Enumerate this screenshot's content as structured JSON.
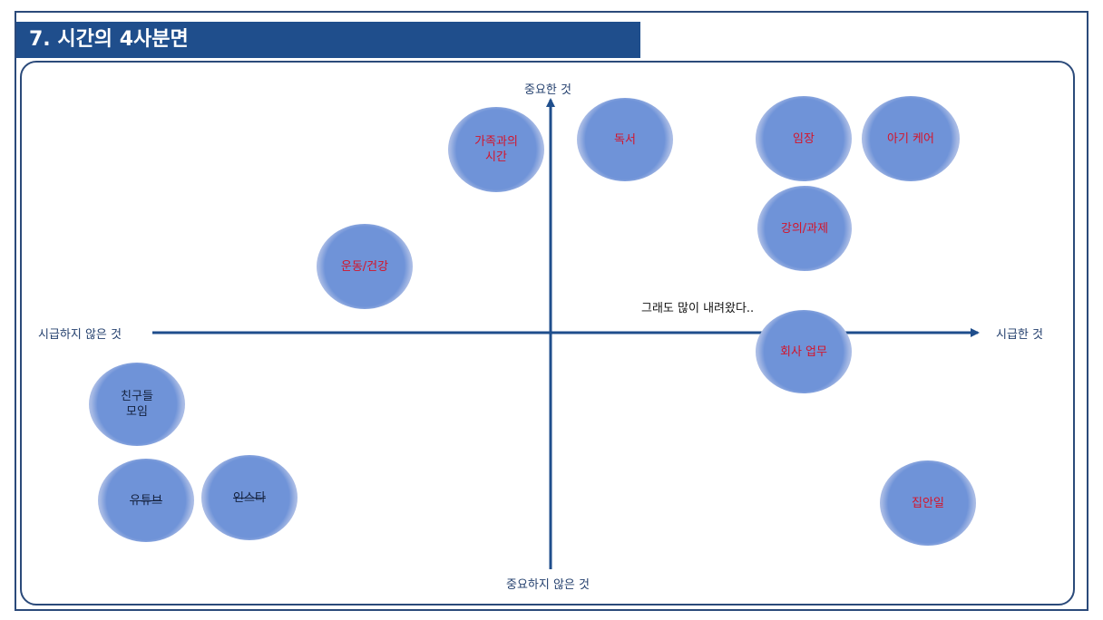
{
  "title": "7. 시간의 4사분면",
  "axes": {
    "top": "중요한 것",
    "bottom": "중요하지 않은 것",
    "left": "시급하지 않은 것",
    "right": "시급한 것"
  },
  "note": "그래도 많이 내려왔다..",
  "items": [
    {
      "label": "가족과의\n시간",
      "tone": "red"
    },
    {
      "label": "독서",
      "tone": "red"
    },
    {
      "label": "임장",
      "tone": "red"
    },
    {
      "label": "아기 케어",
      "tone": "red"
    },
    {
      "label": "강의/과제",
      "tone": "red"
    },
    {
      "label": "운동/건강",
      "tone": "red"
    },
    {
      "label": "회사 업무",
      "tone": "red"
    },
    {
      "label": "친구들\n모임",
      "tone": "dark"
    },
    {
      "label": "유튜브",
      "tone": "dark"
    },
    {
      "label": "인스타",
      "tone": "dark"
    },
    {
      "label": "집안일",
      "tone": "red"
    }
  ],
  "colors": {
    "accent": "#1f4e8c",
    "item_text_red": "#d4142a",
    "bubble": "#6f93d8"
  }
}
